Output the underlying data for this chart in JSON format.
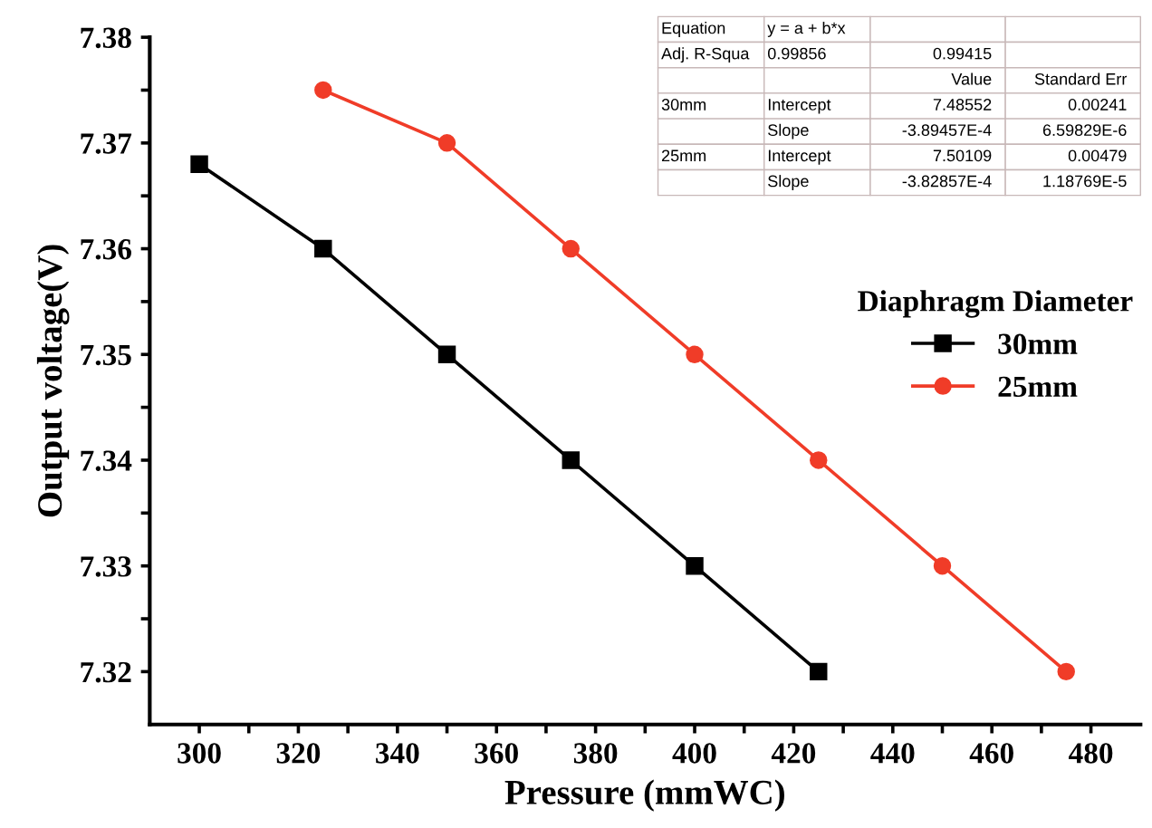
{
  "chart_data": {
    "type": "line",
    "xlabel": "Pressure (mmWC)",
    "ylabel": "Output voltage(V)",
    "legend_title": "Diaphragm Diameter",
    "legend": "right",
    "grid": false,
    "line_style": "solid",
    "xlim": [
      290,
      490
    ],
    "ylim": [
      7.315,
      7.38
    ],
    "xticks": [
      300,
      {
        "value": 310,
        "label": null
      },
      320,
      {
        "value": 330,
        "label": null
      },
      340,
      {
        "value": 350,
        "label": null
      },
      360,
      {
        "value": 370,
        "label": null
      },
      380,
      {
        "value": 390,
        "label": null
      },
      400,
      {
        "value": 410,
        "label": null
      },
      420,
      {
        "value": 430,
        "label": null
      },
      440,
      {
        "value": 450,
        "label": null
      },
      460,
      {
        "value": 470,
        "label": null
      },
      480
    ],
    "yticks": [
      7.32,
      {
        "value": 7.325,
        "label": null
      },
      7.33,
      {
        "value": 7.335,
        "label": null
      },
      7.34,
      {
        "value": 7.345,
        "label": null
      },
      7.35,
      {
        "value": 7.355,
        "label": null
      },
      7.36,
      {
        "value": 7.365,
        "label": null
      },
      7.37,
      {
        "value": 7.375,
        "label": null
      },
      7.38
    ],
    "series": [
      {
        "name": "30mm",
        "color": "#000000",
        "marker": "square",
        "x": [
          300,
          325,
          350,
          375,
          400,
          425
        ],
        "values": [
          7.368,
          7.36,
          7.35,
          7.34,
          7.33,
          7.32
        ]
      },
      {
        "name": "25mm",
        "color": "#f03c28",
        "marker": "circle",
        "x": [
          325,
          350,
          375,
          400,
          425,
          450,
          475
        ],
        "values": [
          7.375,
          7.37,
          7.36,
          7.35,
          7.34,
          7.33,
          7.32
        ]
      }
    ],
    "annotations": [
      "Equation",
      "y = a + b*x",
      null,
      null,
      "Adj. R-Squa",
      "0.99856",
      "0.99415",
      null,
      null,
      null,
      "Value",
      "Standard Err",
      "30mm",
      "Intercept",
      "7.48552",
      "0.00241",
      null,
      "Slope",
      "-3.89457E-4",
      "6.59829E-6",
      "25mm",
      "Intercept",
      "7.50109",
      "0.00479",
      null,
      "Slope",
      "-3.82857E-4",
      "1.18769E-5"
    ]
  }
}
